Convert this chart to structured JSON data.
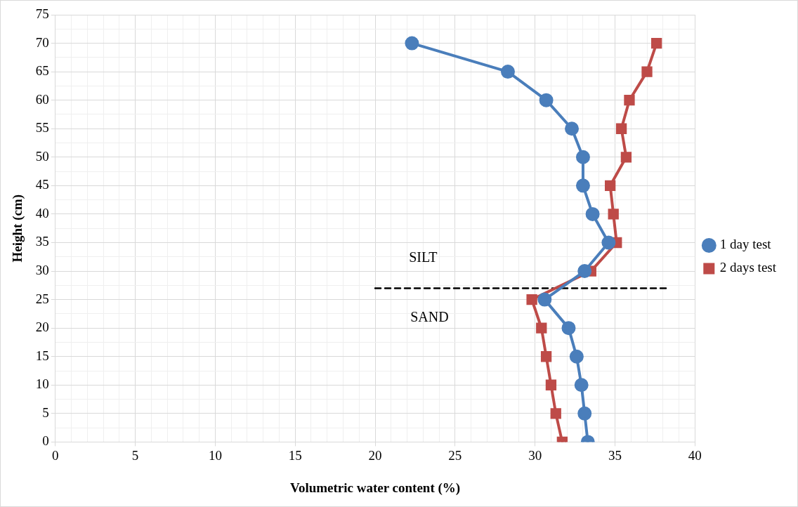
{
  "chart_data": {
    "type": "line",
    "xlabel": "Volumetric water content (%)",
    "ylabel": "Height (cm)",
    "xlim": [
      0,
      40
    ],
    "ylim": [
      0,
      75
    ],
    "xticks": [
      0,
      {
        "value": 1,
        "label": null
      },
      {
        "value": 2,
        "label": null
      },
      {
        "value": 3,
        "label": null
      },
      {
        "value": 4,
        "label": null
      },
      5,
      {
        "value": 6,
        "label": null
      },
      {
        "value": 7,
        "label": null
      },
      {
        "value": 8,
        "label": null
      },
      {
        "value": 9,
        "label": null
      },
      10,
      {
        "value": 11,
        "label": null
      },
      {
        "value": 12,
        "label": null
      },
      {
        "value": 13,
        "label": null
      },
      {
        "value": 14,
        "label": null
      },
      15,
      {
        "value": 16,
        "label": null
      },
      {
        "value": 17,
        "label": null
      },
      {
        "value": 18,
        "label": null
      },
      {
        "value": 19,
        "label": null
      },
      20,
      {
        "value": 21,
        "label": null
      },
      {
        "value": 22,
        "label": null
      },
      {
        "value": 23,
        "label": null
      },
      {
        "value": 24,
        "label": null
      },
      25,
      {
        "value": 26,
        "label": null
      },
      {
        "value": 27,
        "label": null
      },
      {
        "value": 28,
        "label": null
      },
      {
        "value": 29,
        "label": null
      },
      30,
      {
        "value": 31,
        "label": null
      },
      {
        "value": 32,
        "label": null
      },
      {
        "value": 33,
        "label": null
      },
      {
        "value": 34,
        "label": null
      },
      35,
      {
        "value": 36,
        "label": null
      },
      {
        "value": 37,
        "label": null
      },
      {
        "value": 38,
        "label": null
      },
      {
        "value": 39,
        "label": null
      },
      40
    ],
    "yticks": [
      0,
      {
        "value": 2.5,
        "label": null
      },
      5,
      {
        "value": 7.5,
        "label": null
      },
      10,
      {
        "value": 12.5,
        "label": null
      },
      15,
      {
        "value": 17.5,
        "label": null
      },
      20,
      {
        "value": 22.5,
        "label": null
      },
      25,
      {
        "value": 27.5,
        "label": null
      },
      30,
      {
        "value": 32.5,
        "label": null
      },
      35,
      {
        "value": 37.5,
        "label": null
      },
      40,
      {
        "value": 42.5,
        "label": null
      },
      45,
      {
        "value": 47.5,
        "label": null
      },
      50,
      {
        "value": 52.5,
        "label": null
      },
      55,
      {
        "value": 57.5,
        "label": null
      },
      60,
      {
        "value": 62.5,
        "label": null
      },
      65,
      {
        "value": 67.5,
        "label": null
      },
      70,
      {
        "value": 72.5,
        "label": null
      },
      75
    ],
    "grid": true,
    "legend": "right",
    "series": [
      {
        "name": "1 day test",
        "color": "#4a7ebb",
        "marker": "circle",
        "x": [
          22.3,
          28.3,
          30.7,
          32.3,
          33.0,
          33.0,
          33.6,
          34.6,
          33.1,
          30.6,
          32.1,
          32.6,
          32.9,
          33.1,
          33.3
        ],
        "values": [
          70,
          65,
          60,
          55,
          50,
          45,
          40,
          35,
          30,
          25,
          20,
          15,
          10,
          5,
          0
        ]
      },
      {
        "name": "2 days test",
        "color": "#be4b48",
        "marker": "square",
        "x": [
          37.6,
          37.0,
          35.9,
          35.4,
          35.7,
          34.7,
          34.9,
          35.1,
          33.5,
          29.8,
          30.4,
          30.7,
          31.0,
          31.3,
          31.7
        ],
        "values": [
          70,
          65,
          60,
          55,
          50,
          45,
          40,
          35,
          30,
          25,
          20,
          15,
          10,
          5,
          0
        ]
      },
      {
        "color": "#000000",
        "marker": "none",
        "line_style": "dashed",
        "x": [
          20,
          38.3
        ],
        "values": [
          27,
          27
        ]
      }
    ],
    "annotations": [
      "SILT",
      "SAND"
    ]
  }
}
